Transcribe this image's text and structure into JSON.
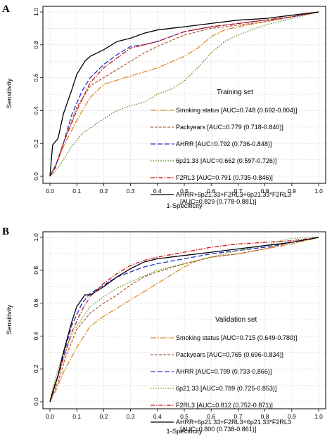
{
  "chart_data": [
    {
      "panel": "A",
      "type": "line",
      "annotation": "Training set",
      "xlabel": "1-Specificity",
      "ylabel": "Sensitivity",
      "xlim": [
        0,
        1
      ],
      "ylim": [
        0,
        1
      ],
      "xticks": [
        "0.0",
        "0.1",
        "0.2",
        "0.3",
        "0.4",
        "0.5",
        "0.6",
        "0.7",
        "0.8",
        "0.9",
        "1.0"
      ],
      "yticks": [
        "0.0",
        "0.2",
        "0.4",
        "0.6",
        "0.8",
        "1.0"
      ],
      "grid": true,
      "legend_position": "bottom-right",
      "series": [
        {
          "name": "Smoking status [AUC=0.748 (0.692-0.804)]",
          "color": "#d98c1e",
          "dash": "8 2 2 2",
          "x": [
            0,
            0.02,
            0.05,
            0.1,
            0.15,
            0.2,
            0.3,
            0.4,
            0.5,
            0.55,
            0.6,
            0.65,
            0.7,
            0.8,
            0.9,
            1
          ],
          "y": [
            0,
            0.06,
            0.18,
            0.34,
            0.48,
            0.56,
            0.61,
            0.66,
            0.73,
            0.78,
            0.85,
            0.89,
            0.91,
            0.94,
            0.97,
            1
          ]
        },
        {
          "name": "Packyears [AUC=0.779 (0.718-0.840)]",
          "color": "#b5653d",
          "dash": "4 2",
          "x": [
            0,
            0.03,
            0.06,
            0.1,
            0.15,
            0.2,
            0.25,
            0.3,
            0.35,
            0.4,
            0.5,
            0.6,
            0.7,
            0.8,
            0.9,
            1
          ],
          "y": [
            0,
            0.1,
            0.25,
            0.42,
            0.55,
            0.6,
            0.65,
            0.7,
            0.75,
            0.79,
            0.86,
            0.9,
            0.92,
            0.94,
            0.97,
            1
          ]
        },
        {
          "name": "AHRR [AUC=0.792 (0.736-0.848)]",
          "color": "#2233cc",
          "dash": "7 3",
          "x": [
            0,
            0.02,
            0.05,
            0.08,
            0.12,
            0.15,
            0.2,
            0.25,
            0.3,
            0.35,
            0.4,
            0.45,
            0.5,
            0.6,
            0.7,
            0.8,
            0.9,
            1
          ],
          "y": [
            0,
            0.06,
            0.2,
            0.37,
            0.52,
            0.6,
            0.68,
            0.74,
            0.79,
            0.8,
            0.82,
            0.85,
            0.88,
            0.91,
            0.93,
            0.95,
            0.97,
            1
          ]
        },
        {
          "name": "6p21.33 [AUC=0.662 (0.597-0.726)]",
          "color": "#4e8a1a",
          "dash": "1.5 2",
          "x": [
            0,
            0.03,
            0.08,
            0.12,
            0.2,
            0.25,
            0.3,
            0.35,
            0.4,
            0.45,
            0.5,
            0.55,
            0.6,
            0.65,
            0.7,
            0.8,
            0.9,
            1
          ],
          "y": [
            0,
            0.05,
            0.18,
            0.26,
            0.35,
            0.4,
            0.43,
            0.45,
            0.5,
            0.53,
            0.58,
            0.66,
            0.75,
            0.82,
            0.86,
            0.92,
            0.96,
            1
          ]
        },
        {
          "name": "F2RL3 [AUC=0.791 (0.735-0.846)]",
          "color": "#cc1111",
          "dash": "6 2 1.5 2",
          "x": [
            0,
            0.02,
            0.05,
            0.1,
            0.15,
            0.2,
            0.25,
            0.3,
            0.35,
            0.4,
            0.45,
            0.5,
            0.6,
            0.7,
            0.8,
            0.9,
            1
          ],
          "y": [
            0,
            0.05,
            0.2,
            0.4,
            0.57,
            0.66,
            0.72,
            0.78,
            0.8,
            0.82,
            0.85,
            0.88,
            0.91,
            0.93,
            0.95,
            0.97,
            1
          ]
        },
        {
          "name": "AHRR+6p21.33+F2RL3+6p21.33*F2RL3",
          "name_line2": "[AUC=0.829 (0.778-0.881)]",
          "color": "#000000",
          "dash": "",
          "x": [
            0,
            0.01,
            0.03,
            0.05,
            0.08,
            0.1,
            0.13,
            0.15,
            0.2,
            0.25,
            0.3,
            0.35,
            0.4,
            0.5,
            0.6,
            0.7,
            0.8,
            0.9,
            1
          ],
          "y": [
            0,
            0.19,
            0.23,
            0.38,
            0.52,
            0.62,
            0.7,
            0.73,
            0.77,
            0.82,
            0.84,
            0.87,
            0.89,
            0.91,
            0.93,
            0.95,
            0.96,
            0.98,
            1
          ]
        }
      ]
    },
    {
      "panel": "B",
      "type": "line",
      "annotation": "Validation set",
      "xlabel": "1-Specificity",
      "ylabel": "Sensitivity",
      "xlim": [
        0,
        1
      ],
      "ylim": [
        0,
        1
      ],
      "xticks": [
        "0.0",
        "0.1",
        "0.2",
        "0.3",
        "0.4",
        "0.5",
        "0.6",
        "0.7",
        "0.8",
        "0.9",
        "1.0"
      ],
      "yticks": [
        "0.0",
        "0.2",
        "0.4",
        "0.6",
        "0.8",
        "1.0"
      ],
      "grid": true,
      "legend_position": "bottom-right",
      "series": [
        {
          "name": "Smoking status [AUC=0.715 (0.649-0.780)]",
          "color": "#d98c1e",
          "dash": "8 2 2 2",
          "x": [
            0,
            0.02,
            0.05,
            0.1,
            0.15,
            0.2,
            0.3,
            0.4,
            0.5,
            0.55,
            0.6,
            0.7,
            0.8,
            0.9,
            1
          ],
          "y": [
            0,
            0.06,
            0.18,
            0.33,
            0.46,
            0.52,
            0.62,
            0.72,
            0.82,
            0.86,
            0.88,
            0.9,
            0.93,
            0.96,
            1
          ]
        },
        {
          "name": "Packyears [AUC=0.765 (0.696-0.834)]",
          "color": "#b5653d",
          "dash": "4 2",
          "x": [
            0,
            0.03,
            0.06,
            0.1,
            0.15,
            0.2,
            0.25,
            0.3,
            0.35,
            0.4,
            0.5,
            0.6,
            0.7,
            0.8,
            0.9,
            1
          ],
          "y": [
            0,
            0.12,
            0.28,
            0.44,
            0.54,
            0.6,
            0.65,
            0.71,
            0.76,
            0.79,
            0.84,
            0.88,
            0.9,
            0.93,
            0.97,
            1
          ]
        },
        {
          "name": "AHRR [AUC=0.799 (0.733-0.866)]",
          "color": "#2233cc",
          "dash": "7 3",
          "x": [
            0,
            0.02,
            0.05,
            0.08,
            0.12,
            0.15,
            0.2,
            0.25,
            0.3,
            0.35,
            0.4,
            0.5,
            0.6,
            0.7,
            0.8,
            0.9,
            1
          ],
          "y": [
            0,
            0.1,
            0.28,
            0.46,
            0.6,
            0.66,
            0.71,
            0.76,
            0.79,
            0.82,
            0.84,
            0.87,
            0.9,
            0.92,
            0.94,
            0.97,
            1
          ]
        },
        {
          "name": "6p21.33 [AUC=0.789 (0.725-0.853)]",
          "color": "#6a9a1a",
          "dash": "1.5 2",
          "x": [
            0,
            0.02,
            0.05,
            0.1,
            0.15,
            0.2,
            0.25,
            0.3,
            0.4,
            0.5,
            0.6,
            0.7,
            0.8,
            0.88,
            0.95,
            1
          ],
          "y": [
            0,
            0.14,
            0.3,
            0.46,
            0.58,
            0.64,
            0.69,
            0.73,
            0.8,
            0.84,
            0.88,
            0.92,
            0.95,
            0.99,
            1,
            1
          ]
        },
        {
          "name": "F2RL3 [AUC=0.812 (0.752-0.871)]",
          "color": "#cc1111",
          "dash": "6 2 1.5 2",
          "x": [
            0,
            0.02,
            0.05,
            0.08,
            0.12,
            0.15,
            0.2,
            0.25,
            0.3,
            0.35,
            0.4,
            0.5,
            0.6,
            0.7,
            0.8,
            0.9,
            1
          ],
          "y": [
            0,
            0.1,
            0.26,
            0.42,
            0.56,
            0.64,
            0.72,
            0.78,
            0.83,
            0.86,
            0.88,
            0.91,
            0.94,
            0.96,
            0.97,
            0.98,
            1
          ]
        },
        {
          "name": "AHRR+6p21.33+F2RL3+6p21.33*F2RL3",
          "name_line2": "[AUC=0.800 (0.738-0.861)]",
          "color": "#000000",
          "dash": "",
          "x": [
            0,
            0.01,
            0.03,
            0.05,
            0.08,
            0.1,
            0.13,
            0.15,
            0.2,
            0.25,
            0.3,
            0.35,
            0.4,
            0.5,
            0.6,
            0.7,
            0.8,
            0.9,
            1
          ],
          "y": [
            0,
            0.06,
            0.16,
            0.3,
            0.48,
            0.58,
            0.65,
            0.65,
            0.7,
            0.76,
            0.81,
            0.85,
            0.87,
            0.89,
            0.91,
            0.93,
            0.95,
            0.97,
            1
          ]
        }
      ]
    }
  ]
}
